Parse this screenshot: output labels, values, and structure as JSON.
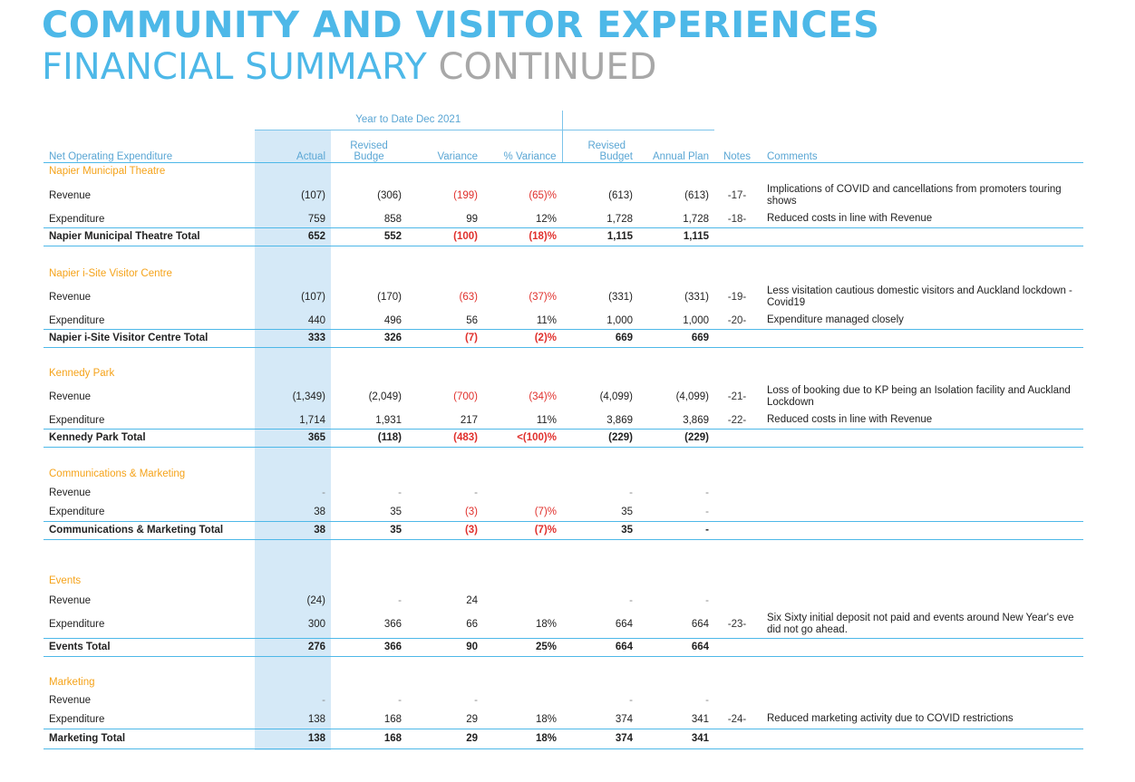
{
  "title": {
    "line1": "COMMUNITY AND VISITOR EXPERIENCES",
    "line2a": "FINANCIAL SUMMARY",
    "line2b": "CONTINUED"
  },
  "header": {
    "ytd": "Year to Date Dec 2021",
    "label": "Net Operating Expenditure",
    "actual": "Actual",
    "revised_budge": [
      "Revised",
      "Budge"
    ],
    "variance": "Variance",
    "pct_variance": "% Variance",
    "revised_budget": [
      "Revised",
      "Budget"
    ],
    "annual_plan": "Annual Plan",
    "notes": "Notes",
    "comments": "Comments"
  },
  "sections": [
    {
      "name": "Napier Municipal Theatre",
      "rows": [
        {
          "label": "Revenue",
          "actual": "(107)",
          "budget": "(306)",
          "variance": "(199)",
          "pct": "(65)%",
          "rev_budget": "(613)",
          "plan": "(613)",
          "note": "-17-",
          "comment": "Implications of COVID and cancellations from promoters touring shows"
        },
        {
          "label": "Expenditure",
          "actual": "759",
          "budget": "858",
          "variance": "99",
          "pct": "12%",
          "rev_budget": "1,728",
          "plan": "1,728",
          "note": "-18-",
          "comment": "Reduced costs in line with Revenue"
        }
      ],
      "total": {
        "label": "Napier Municipal Theatre Total",
        "actual": "652",
        "budget": "552",
        "variance": "(100)",
        "pct": "(18)%",
        "rev_budget": "1,115",
        "plan": "1,115"
      }
    },
    {
      "name": "Napier i-Site Visitor Centre",
      "rows": [
        {
          "label": "Revenue",
          "actual": "(107)",
          "budget": "(170)",
          "variance": "(63)",
          "pct": "(37)%",
          "rev_budget": "(331)",
          "plan": "(331)",
          "note": "-19-",
          "comment": "Less visitation cautious domestic visitors and Auckland lockdown - Covid19"
        },
        {
          "label": "Expenditure",
          "actual": "440",
          "budget": "496",
          "variance": "56",
          "pct": "11%",
          "rev_budget": "1,000",
          "plan": "1,000",
          "note": "-20-",
          "comment": "Expenditure managed closely"
        }
      ],
      "total": {
        "label": "Napier i-Site Visitor Centre Total",
        "actual": "333",
        "budget": "326",
        "variance": "(7)",
        "pct": "(2)%",
        "rev_budget": "669",
        "plan": "669"
      }
    },
    {
      "name": "Kennedy Park",
      "rows": [
        {
          "label": "Revenue",
          "actual": "(1,349)",
          "budget": "(2,049)",
          "variance": "(700)",
          "pct": "(34)%",
          "rev_budget": "(4,099)",
          "plan": "(4,099)",
          "note": "-21-",
          "comment": "Loss of booking due to KP being an Isolation facility and Auckland Lockdown"
        },
        {
          "label": "Expenditure",
          "actual": "1,714",
          "budget": "1,931",
          "variance": "217",
          "pct": "11%",
          "rev_budget": "3,869",
          "plan": "3,869",
          "note": "-22-",
          "comment": "Reduced costs in line with Revenue"
        }
      ],
      "total": {
        "label": "Kennedy Park Total",
        "actual": "365",
        "budget": "(118)",
        "variance": "(483)",
        "pct": "<(100)%",
        "rev_budget": "(229)",
        "plan": "(229)"
      }
    },
    {
      "name": "Communications & Marketing",
      "rows": [
        {
          "label": "Revenue",
          "actual": "-",
          "budget": "-",
          "variance": "-",
          "pct": "",
          "rev_budget": "-",
          "plan": "-",
          "note": "",
          "comment": ""
        },
        {
          "label": "Expenditure",
          "actual": "38",
          "budget": "35",
          "variance": "(3)",
          "pct": "(7)%",
          "rev_budget": "35",
          "plan": "-",
          "note": "",
          "comment": ""
        }
      ],
      "total": {
        "label": "Communications & Marketing Total",
        "actual": "38",
        "budget": "35",
        "variance": "(3)",
        "pct": "(7)%",
        "rev_budget": "35",
        "plan": "-"
      }
    },
    {
      "name": "Events",
      "rows": [
        {
          "label": "Revenue",
          "actual": "(24)",
          "budget": "-",
          "variance": "24",
          "pct": "",
          "rev_budget": "-",
          "plan": "-",
          "note": "",
          "comment": ""
        },
        {
          "label": "Expenditure",
          "actual": "300",
          "budget": "366",
          "variance": "66",
          "pct": "18%",
          "rev_budget": "664",
          "plan": "664",
          "note": "-23-",
          "comment": "Six Sixty initial deposit not paid and events around New Year's eve did not go ahead."
        }
      ],
      "total": {
        "label": "Events Total",
        "actual": "276",
        "budget": "366",
        "variance": "90",
        "pct": "25%",
        "rev_budget": "664",
        "plan": "664"
      }
    },
    {
      "name": "Marketing",
      "rows": [
        {
          "label": "Revenue",
          "actual": "-",
          "budget": "-",
          "variance": "-",
          "pct": "",
          "rev_budget": "-",
          "plan": "-",
          "note": "",
          "comment": ""
        },
        {
          "label": "Expenditure",
          "actual": "138",
          "budget": "168",
          "variance": "29",
          "pct": "18%",
          "rev_budget": "374",
          "plan": "341",
          "note": "-24-",
          "comment": "Reduced marketing activity due to COVID restrictions"
        }
      ],
      "total": {
        "label": "Marketing Total",
        "actual": "138",
        "budget": "168",
        "variance": "29",
        "pct": "18%",
        "rev_budget": "374",
        "plan": "341"
      }
    }
  ],
  "colors": {
    "accent_blue": "#4db8e8",
    "section_orange": "#f5a31a",
    "negative_red": "#e0302c",
    "shade": "#d5e9f7"
  }
}
